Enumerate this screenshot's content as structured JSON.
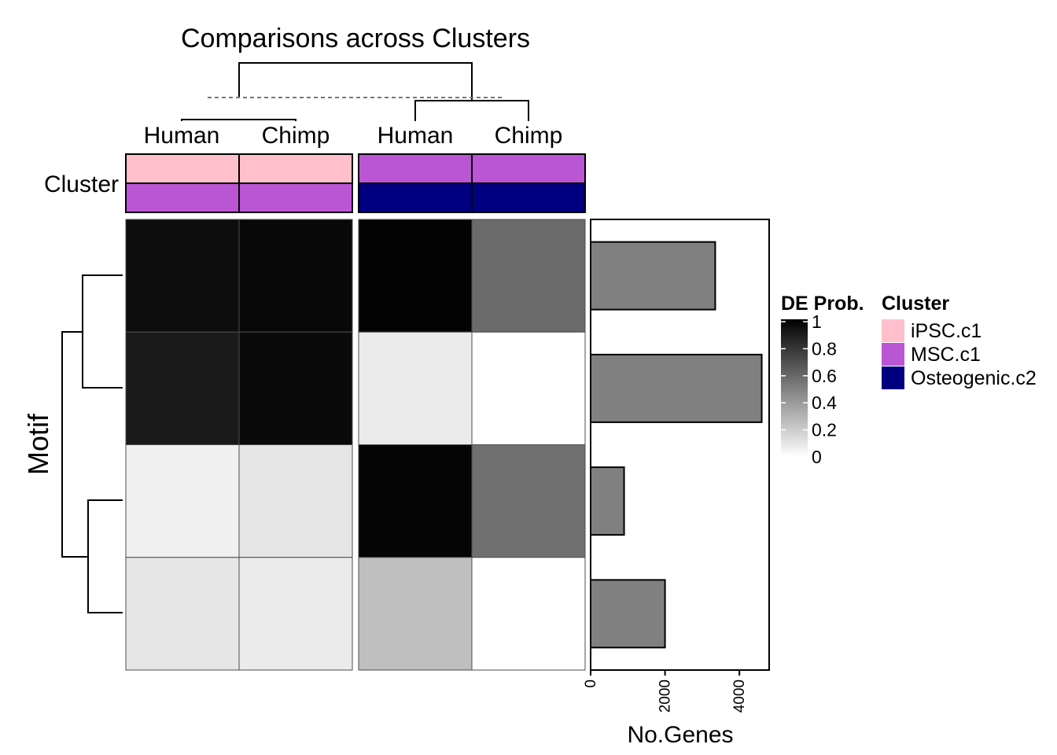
{
  "chart_data": {
    "type": "heatmap",
    "title": "Comparisons across Clusters",
    "row_axis_label": "Motif",
    "columns": [
      {
        "label": "Human",
        "group": 1
      },
      {
        "label": "Chimp",
        "group": 1
      },
      {
        "label": "Human",
        "group": 2
      },
      {
        "label": "Chimp",
        "group": 2
      }
    ],
    "annotation": {
      "label": "Cluster",
      "rows": [
        [
          "iPSC.c1",
          "iPSC.c1",
          "MSC.c1",
          "MSC.c1"
        ],
        [
          "MSC.c1",
          "MSC.c1",
          "Osteogenic.c2",
          "Osteogenic.c2"
        ]
      ]
    },
    "values": [
      [
        0.95,
        0.97,
        0.99,
        0.58
      ],
      [
        0.9,
        0.96,
        0.08,
        0.0
      ],
      [
        0.06,
        0.1,
        0.98,
        0.56
      ],
      [
        0.1,
        0.08,
        0.25,
        0.0
      ]
    ],
    "color_legend": {
      "title": "DE Prob.",
      "ticks": [
        "1",
        "0.8",
        "0.6",
        "0.4",
        "0.2",
        "0"
      ],
      "range": [
        0,
        1
      ],
      "low_color": "#ffffff",
      "high_color": "#000000"
    },
    "cluster_legend": {
      "title": "Cluster",
      "items": [
        {
          "name": "iPSC.c1",
          "color": "#ffc0cb"
        },
        {
          "name": "MSC.c1",
          "color": "#ba55d3"
        },
        {
          "name": "Osteogenic.c2",
          "color": "#000080"
        }
      ]
    },
    "bar_panel": {
      "type": "bar",
      "orientation": "horizontal",
      "xlabel": "No.Genes",
      "xlim": [
        0,
        4800
      ],
      "ticks": [
        0,
        2000,
        4000
      ],
      "tick_labels": [
        "0",
        "2000",
        "4000"
      ],
      "values": [
        3350,
        4600,
        900,
        2000
      ],
      "bar_color": "#808080"
    }
  }
}
